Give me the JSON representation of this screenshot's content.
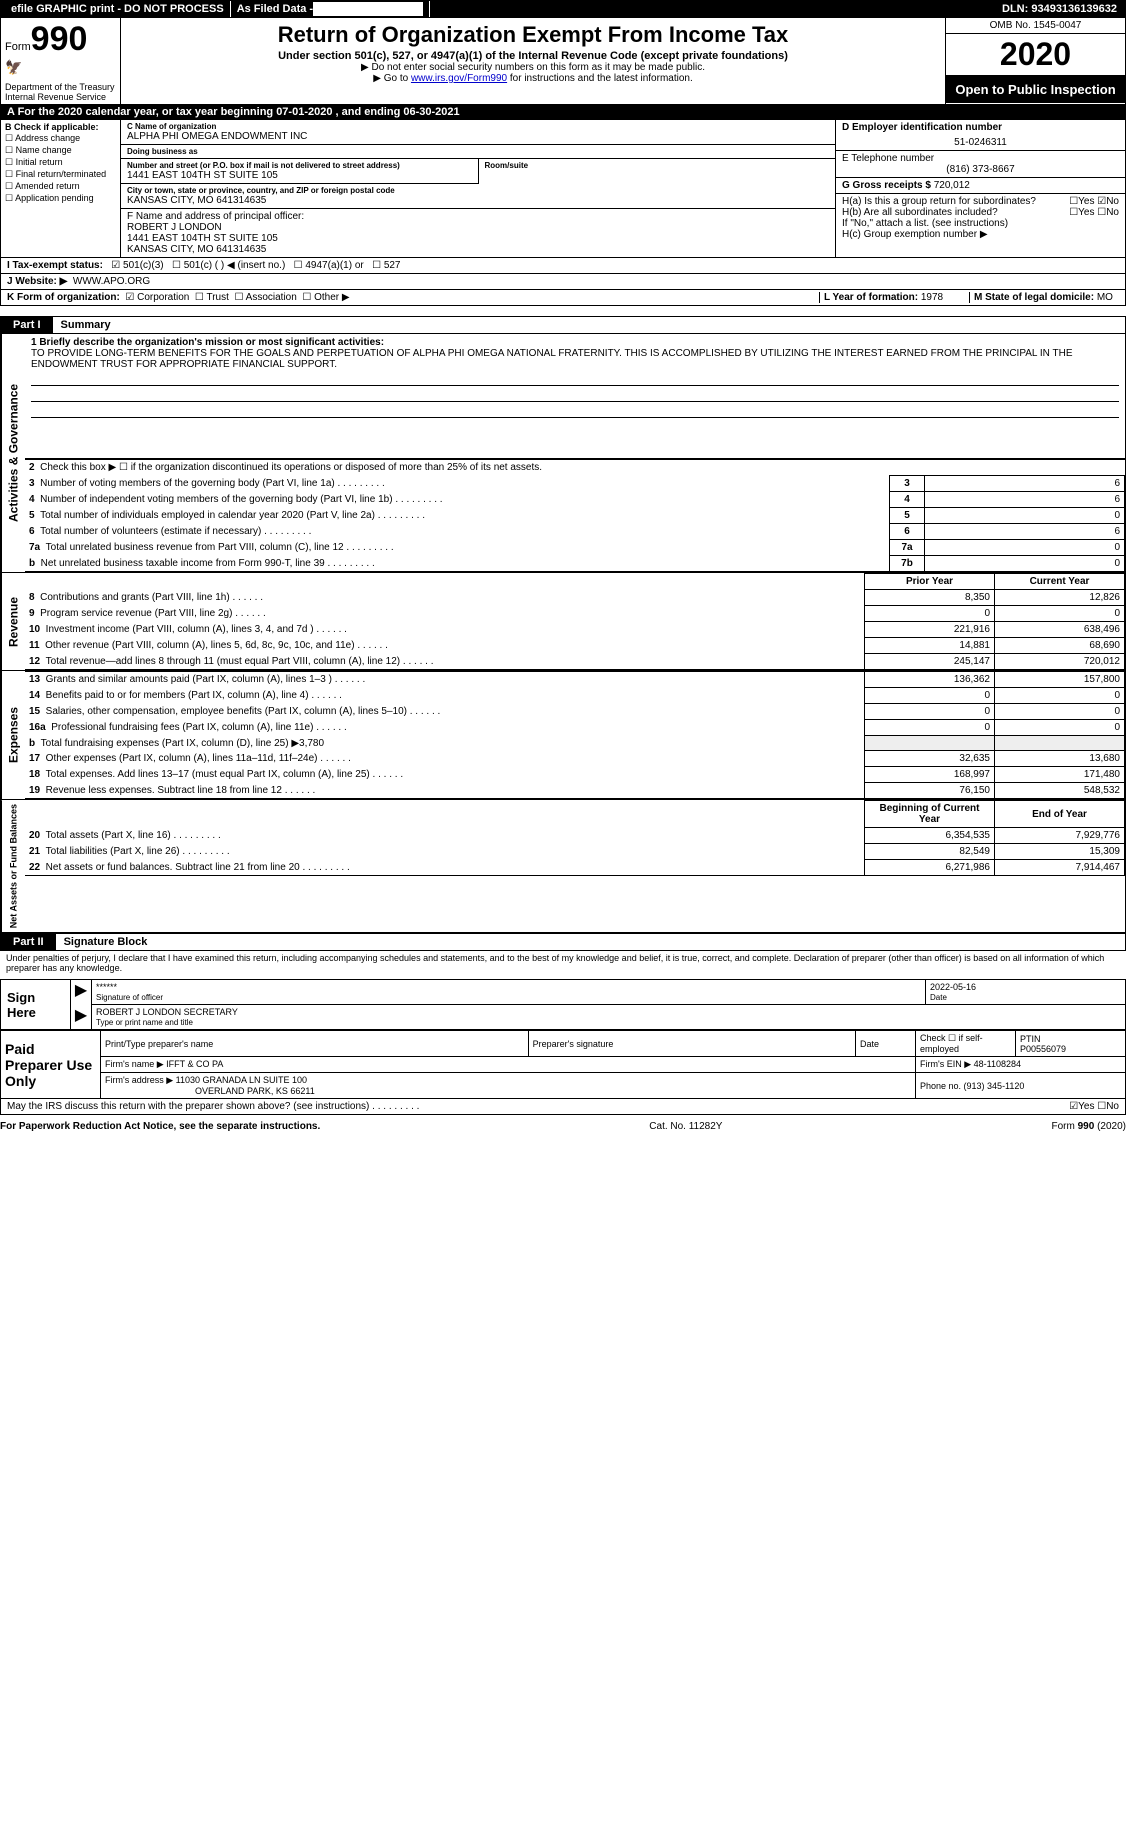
{
  "topbar": {
    "efile": "efile GRAPHIC print - DO NOT PROCESS",
    "asfiled": "As Filed Data -",
    "dln_label": "DLN:",
    "dln": "93493136139632"
  },
  "header": {
    "form": "Form",
    "formnum": "990",
    "dept": "Department of the Treasury\nInternal Revenue Service",
    "title": "Return of Organization Exempt From Income Tax",
    "sub": "Under section 501(c), 527, or 4947(a)(1) of the Internal Revenue Code (except private foundations)",
    "note1": "▶ Do not enter social security numbers on this form as it may be made public.",
    "note2_pre": "▶ Go to ",
    "note2_link": "www.irs.gov/Form990",
    "note2_post": " for instructions and the latest information.",
    "omb_label": "OMB No. 1545-0047",
    "year": "2020",
    "open": "Open to Public Inspection"
  },
  "rowA": {
    "text": "A  For the 2020 calendar year, or tax year beginning 07-01-2020   , and ending 06-30-2021"
  },
  "colB": {
    "label": "B Check if applicable:",
    "opts": [
      "Address change",
      "Name change",
      "Initial return",
      "Final return/terminated",
      "Amended return",
      "Application pending"
    ]
  },
  "colC": {
    "name_label": "C Name of organization",
    "name": "ALPHA PHI OMEGA ENDOWMENT INC",
    "dba_label": "Doing business as",
    "dba": "",
    "addr_label": "Number and street (or P.O. box if mail is not delivered to street address)",
    "room_label": "Room/suite",
    "addr": "1441 EAST 104TH ST SUITE 105",
    "city_label": "City or town, state or province, country, and ZIP or foreign postal code",
    "city": "KANSAS CITY, MO  641314635",
    "f_label": "F  Name and address of principal officer:",
    "f_name": "ROBERT J LONDON",
    "f_addr1": "1441 EAST 104TH ST SUITE 105",
    "f_addr2": "KANSAS CITY, MO  641314635"
  },
  "colD": {
    "ein_label": "D Employer identification number",
    "ein": "51-0246311",
    "phone_label": "E Telephone number",
    "phone": "(816) 373-8667",
    "gross_label": "G Gross receipts $",
    "gross": "720,012",
    "ha": "H(a)  Is this a group return for subordinates?",
    "hb": "H(b)  Are all subordinates included?",
    "hb_note": "If \"No,\" attach a list. (see instructions)",
    "hc": "H(c)  Group exemption number ▶"
  },
  "rowI": {
    "label": "I  Tax-exempt status:",
    "opts": [
      "501(c)(3)",
      "501(c) (   ) ◀ (insert no.)",
      "4947(a)(1) or",
      "527"
    ]
  },
  "rowJ": {
    "label": "J  Website: ▶",
    "val": "WWW.APO.ORG"
  },
  "rowK": {
    "label": "K Form of organization:",
    "opts": [
      "Corporation",
      "Trust",
      "Association",
      "Other ▶"
    ],
    "l_label": "L Year of formation:",
    "l_val": "1978",
    "m_label": "M State of legal domicile:",
    "m_val": "MO"
  },
  "part1": {
    "tab": "Part I",
    "title": "Summary"
  },
  "mission": {
    "label": "1  Briefly describe the organization's mission or most significant activities:",
    "text": "TO PROVIDE LONG-TERM BENEFITS FOR THE GOALS AND PERPETUATION OF ALPHA PHI OMEGA NATIONAL FRATERNITY. THIS IS ACCOMPLISHED BY UTILIZING THE INTEREST EARNED FROM THE PRINCIPAL IN THE ENDOWMENT TRUST FOR APPROPRIATE FINANCIAL SUPPORT."
  },
  "gov_lines": [
    {
      "n": "2",
      "t": "Check this box ▶ ☐ if the organization discontinued its operations or disposed of more than 25% of its net assets.",
      "c": "",
      "v": ""
    },
    {
      "n": "3",
      "t": "Number of voting members of the governing body (Part VI, line 1a)",
      "c": "3",
      "v": "6"
    },
    {
      "n": "4",
      "t": "Number of independent voting members of the governing body (Part VI, line 1b)",
      "c": "4",
      "v": "6"
    },
    {
      "n": "5",
      "t": "Total number of individuals employed in calendar year 2020 (Part V, line 2a)",
      "c": "5",
      "v": "0"
    },
    {
      "n": "6",
      "t": "Total number of volunteers (estimate if necessary)",
      "c": "6",
      "v": "6"
    },
    {
      "n": "7a",
      "t": "Total unrelated business revenue from Part VIII, column (C), line 12",
      "c": "7a",
      "v": "0"
    },
    {
      "n": "b",
      "t": "Net unrelated business taxable income from Form 990-T, line 39",
      "c": "7b",
      "v": "0"
    }
  ],
  "rev_header": {
    "py": "Prior Year",
    "cy": "Current Year"
  },
  "rev_lines": [
    {
      "n": "8",
      "t": "Contributions and grants (Part VIII, line 1h)",
      "py": "8,350",
      "cy": "12,826"
    },
    {
      "n": "9",
      "t": "Program service revenue (Part VIII, line 2g)",
      "py": "0",
      "cy": "0"
    },
    {
      "n": "10",
      "t": "Investment income (Part VIII, column (A), lines 3, 4, and 7d )",
      "py": "221,916",
      "cy": "638,496"
    },
    {
      "n": "11",
      "t": "Other revenue (Part VIII, column (A), lines 5, 6d, 8c, 9c, 10c, and 11e)",
      "py": "14,881",
      "cy": "68,690"
    },
    {
      "n": "12",
      "t": "Total revenue—add lines 8 through 11 (must equal Part VIII, column (A), line 12)",
      "py": "245,147",
      "cy": "720,012"
    }
  ],
  "exp_lines": [
    {
      "n": "13",
      "t": "Grants and similar amounts paid (Part IX, column (A), lines 1–3 )",
      "py": "136,362",
      "cy": "157,800"
    },
    {
      "n": "14",
      "t": "Benefits paid to or for members (Part IX, column (A), line 4)",
      "py": "0",
      "cy": "0"
    },
    {
      "n": "15",
      "t": "Salaries, other compensation, employee benefits (Part IX, column (A), lines 5–10)",
      "py": "0",
      "cy": "0"
    },
    {
      "n": "16a",
      "t": "Professional fundraising fees (Part IX, column (A), line 11e)",
      "py": "0",
      "cy": "0"
    },
    {
      "n": "b",
      "t": "Total fundraising expenses (Part IX, column (D), line 25) ▶3,780",
      "py": "",
      "cy": ""
    },
    {
      "n": "17",
      "t": "Other expenses (Part IX, column (A), lines 11a–11d, 11f–24e)",
      "py": "32,635",
      "cy": "13,680"
    },
    {
      "n": "18",
      "t": "Total expenses. Add lines 13–17 (must equal Part IX, column (A), line 25)",
      "py": "168,997",
      "cy": "171,480"
    },
    {
      "n": "19",
      "t": "Revenue less expenses. Subtract line 18 from line 12",
      "py": "76,150",
      "cy": "548,532"
    }
  ],
  "na_header": {
    "py": "Beginning of Current Year",
    "cy": "End of Year"
  },
  "na_lines": [
    {
      "n": "20",
      "t": "Total assets (Part X, line 16)",
      "py": "6,354,535",
      "cy": "7,929,776"
    },
    {
      "n": "21",
      "t": "Total liabilities (Part X, line 26)",
      "py": "82,549",
      "cy": "15,309"
    },
    {
      "n": "22",
      "t": "Net assets or fund balances. Subtract line 21 from line 20",
      "py": "6,271,986",
      "cy": "7,914,467"
    }
  ],
  "part2": {
    "tab": "Part II",
    "title": "Signature Block",
    "penalty": "Under penalties of perjury, I declare that I have examined this return, including accompanying schedules and statements, and to the best of my knowledge and belief, it is true, correct, and complete. Declaration of preparer (other than officer) is based on all information of which preparer has any knowledge."
  },
  "sign": {
    "label": "Sign Here",
    "stars": "******",
    "sig_of": "Signature of officer",
    "date": "2022-05-16",
    "date_label": "Date",
    "name": "ROBERT J LONDON  SECRETARY",
    "type_label": "Type or print name and title"
  },
  "prep": {
    "label": "Paid Preparer Use Only",
    "r1": {
      "c1": "Print/Type preparer's name",
      "c2": "Preparer's signature",
      "c3": "Date",
      "c4": "Check ☐ if self-employed",
      "c5_l": "PTIN",
      "c5": "P00556079"
    },
    "r2": {
      "c1": "Firm's name     ▶ IFFT & CO PA",
      "c2": "Firm's EIN ▶ 48-1108284"
    },
    "r3": {
      "c1": "Firm's address ▶ 11030 GRANADA LN SUITE 100",
      "c2": "Phone no. (913) 345-1120"
    },
    "r3b": "OVERLAND PARK, KS  66211"
  },
  "may": "May the IRS discuss this return with the preparer shown above? (see instructions)",
  "footer": {
    "left": "For Paperwork Reduction Act Notice, see the separate instructions.",
    "mid": "Cat. No. 11282Y",
    "right": "Form 990 (2020)"
  }
}
